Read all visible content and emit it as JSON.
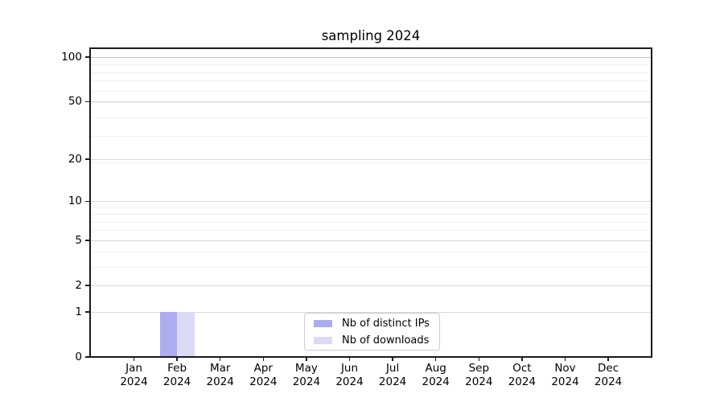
{
  "chart_data": {
    "type": "bar",
    "title": "sampling 2024",
    "xlabel": "",
    "ylabel": "",
    "x_months": [
      "Jan",
      "Feb",
      "Mar",
      "Apr",
      "May",
      "Jun",
      "Jul",
      "Aug",
      "Sep",
      "Oct",
      "Nov",
      "Dec"
    ],
    "x_year": "2024",
    "series": [
      {
        "name": "Nb of distinct IPs",
        "color": "#acacef",
        "values": [
          0,
          1,
          0,
          0,
          0,
          0,
          0,
          0,
          0,
          0,
          0,
          0
        ]
      },
      {
        "name": "Nb of downloads",
        "color": "#dbdbf6",
        "values": [
          0,
          1,
          0,
          0,
          0,
          0,
          0,
          0,
          0,
          0,
          0,
          0
        ]
      }
    ],
    "y_ticks": [
      0,
      1,
      2,
      5,
      10,
      20,
      50,
      100
    ],
    "y_minor_gridline_values": [
      1,
      2,
      3,
      4,
      5,
      6,
      7,
      8,
      9,
      19,
      29,
      39,
      49,
      59,
      69,
      79,
      89
    ],
    "y_scale": "log10(1+y)",
    "ylim": [
      0,
      115
    ],
    "grid": "horizontal",
    "legend_position": "lower center",
    "colors": {
      "grid_minor": "#f0f0f0",
      "grid_major": "#d9d9d9",
      "grid_decade": "#c6c6c6",
      "axis": "#1a1a1a",
      "text": "#000000"
    }
  }
}
